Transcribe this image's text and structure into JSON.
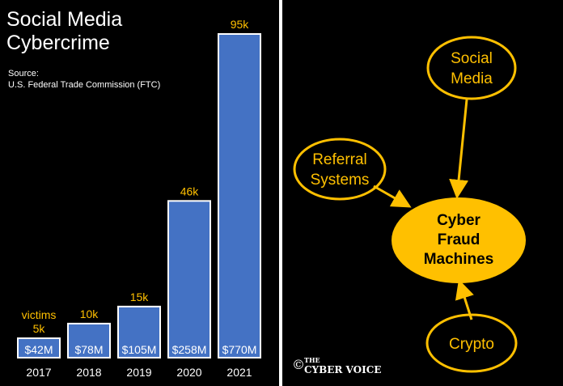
{
  "chart_data": {
    "type": "bar",
    "title": "Social Media Cybercrime",
    "title_lines": [
      "Social Media",
      "Cybercrime"
    ],
    "source_lines": [
      "Source:",
      "U.S. Federal Trade Commission (FTC)"
    ],
    "categories": [
      "2017",
      "2018",
      "2019",
      "2020",
      "2021"
    ],
    "values": [
      5,
      10,
      15,
      46,
      95
    ],
    "value_unit": "thousand victims",
    "top_labels": [
      "5k",
      "10k",
      "15k",
      "46k",
      "95k"
    ],
    "victims_prefix": "victims",
    "bar_labels": [
      "$42M",
      "$78M",
      "$105M",
      "$258M",
      "$770M"
    ],
    "ylim": [
      0,
      95
    ],
    "grid": false,
    "legend": "none"
  },
  "diagram": {
    "center_lines": [
      "Cyber",
      "Fraud",
      "Machines"
    ],
    "nodes": [
      {
        "id": "social-media",
        "lines": [
          "Social",
          "Media"
        ]
      },
      {
        "id": "referral-systems",
        "lines": [
          "Referral",
          "Systems"
        ]
      },
      {
        "id": "crypto",
        "lines": [
          "Crypto"
        ]
      }
    ]
  },
  "brand": {
    "copyright": "©",
    "line1": "THE",
    "line2": "CYBER VOICE"
  },
  "colors": {
    "bar": "#4472C4",
    "accent": "#FFC000",
    "background": "#000000",
    "text": "#FFFFFF"
  }
}
